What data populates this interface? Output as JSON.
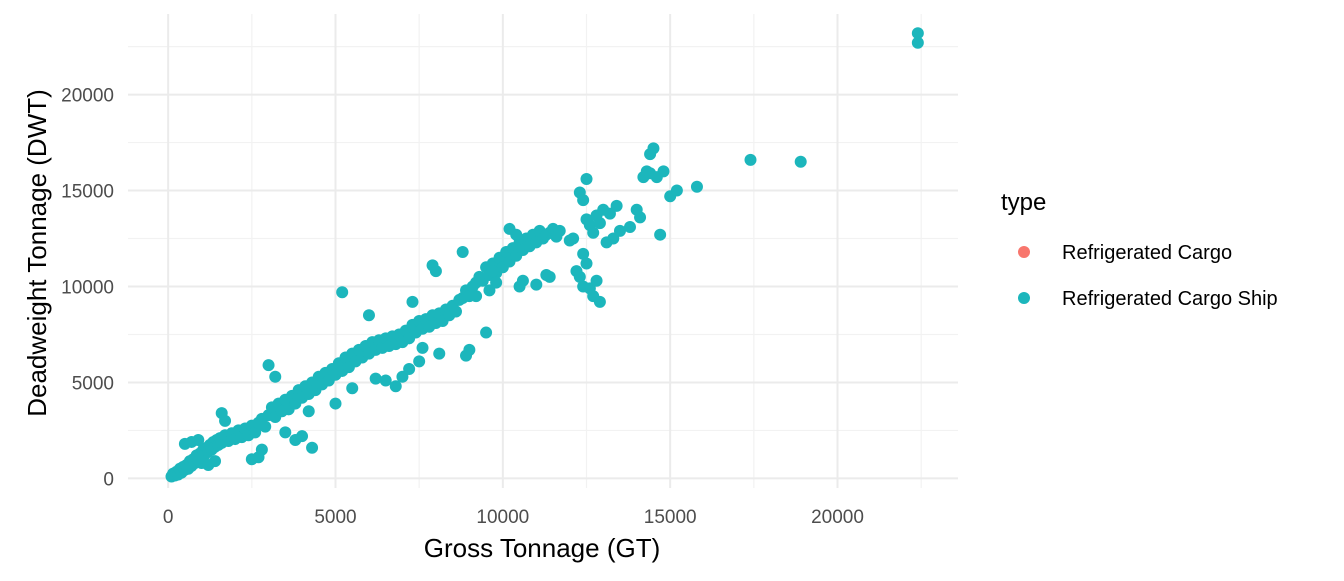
{
  "chart_data": {
    "type": "scatter",
    "xlabel": "Gross Tonnage (GT)",
    "ylabel": "Deadweight Tonnage (DWT)",
    "xlim": [
      -1200,
      23600
    ],
    "ylim": [
      -500,
      24200
    ],
    "x_ticks": [
      0,
      5000,
      10000,
      15000,
      20000
    ],
    "x_tick_labels": [
      "0",
      "5000",
      "10000",
      "15000",
      "20000"
    ],
    "y_ticks": [
      0,
      5000,
      10000,
      15000,
      20000
    ],
    "y_tick_labels": [
      "0",
      "5000",
      "10000",
      "15000",
      "20000"
    ],
    "grid": true,
    "legend": {
      "title": "type",
      "position": "right",
      "entries": [
        {
          "label": "Refrigerated Cargo",
          "color": "#F8766D"
        },
        {
          "label": "Refrigerated Cargo Ship",
          "color": "#00BFC4"
        }
      ]
    },
    "series": [
      {
        "name": "Refrigerated Cargo Ship",
        "color": "#1CB6BC",
        "points": [
          [
            100,
            100
          ],
          [
            150,
            250
          ],
          [
            200,
            150
          ],
          [
            250,
            350
          ],
          [
            300,
            200
          ],
          [
            350,
            500
          ],
          [
            400,
            300
          ],
          [
            450,
            600
          ],
          [
            500,
            450
          ],
          [
            550,
            700
          ],
          [
            600,
            500
          ],
          [
            650,
            900
          ],
          [
            700,
            650
          ],
          [
            750,
            1000
          ],
          [
            800,
            800
          ],
          [
            850,
            1200
          ],
          [
            900,
            950
          ],
          [
            950,
            1300
          ],
          [
            1000,
            1100
          ],
          [
            1050,
            1500
          ],
          [
            1100,
            1250
          ],
          [
            1150,
            1600
          ],
          [
            1200,
            1400
          ],
          [
            1250,
            1750
          ],
          [
            1300,
            1500
          ],
          [
            1350,
            1900
          ],
          [
            1400,
            1650
          ],
          [
            1450,
            2000
          ],
          [
            1500,
            1750
          ],
          [
            1550,
            2100
          ],
          [
            1600,
            1850
          ],
          [
            1700,
            2250
          ],
          [
            1800,
            1950
          ],
          [
            1900,
            2350
          ],
          [
            2000,
            2050
          ],
          [
            2100,
            2500
          ],
          [
            2200,
            2150
          ],
          [
            2300,
            2600
          ],
          [
            2400,
            2250
          ],
          [
            2500,
            2750
          ],
          [
            500,
            1800
          ],
          [
            700,
            1900
          ],
          [
            900,
            2000
          ],
          [
            1000,
            800
          ],
          [
            1200,
            700
          ],
          [
            1400,
            900
          ],
          [
            1600,
            3400
          ],
          [
            1700,
            3000
          ],
          [
            2600,
            2400
          ],
          [
            2700,
            2900
          ],
          [
            2800,
            3100
          ],
          [
            2900,
            2700
          ],
          [
            3000,
            3300
          ],
          [
            3100,
            3700
          ],
          [
            3200,
            3200
          ],
          [
            3300,
            3900
          ],
          [
            3400,
            3500
          ],
          [
            3500,
            4100
          ],
          [
            3600,
            3600
          ],
          [
            3700,
            4300
          ],
          [
            3800,
            3900
          ],
          [
            3900,
            4600
          ],
          [
            4000,
            4200
          ],
          [
            4100,
            4800
          ],
          [
            4200,
            4400
          ],
          [
            4300,
            5000
          ],
          [
            4400,
            4600
          ],
          [
            4500,
            5300
          ],
          [
            4600,
            4900
          ],
          [
            4700,
            5500
          ],
          [
            2500,
            1000
          ],
          [
            2700,
            1100
          ],
          [
            2800,
            1500
          ],
          [
            3000,
            5900
          ],
          [
            3200,
            5300
          ],
          [
            3500,
            2400
          ],
          [
            3800,
            2000
          ],
          [
            4000,
            2200
          ],
          [
            4200,
            3500
          ],
          [
            4300,
            1600
          ],
          [
            4800,
            5100
          ],
          [
            4900,
            5700
          ],
          [
            5000,
            5400
          ],
          [
            5100,
            6000
          ],
          [
            5200,
            5600
          ],
          [
            5300,
            6300
          ],
          [
            5400,
            5800
          ],
          [
            5500,
            6500
          ],
          [
            5600,
            6100
          ],
          [
            5700,
            6700
          ],
          [
            5800,
            6300
          ],
          [
            5900,
            6900
          ],
          [
            6000,
            6500
          ],
          [
            6100,
            7100
          ],
          [
            6200,
            6700
          ],
          [
            6300,
            7200
          ],
          [
            6400,
            6800
          ],
          [
            6500,
            7300
          ],
          [
            6600,
            6900
          ],
          [
            6700,
            7400
          ],
          [
            5200,
            9700
          ],
          [
            5000,
            3900
          ],
          [
            5500,
            4700
          ],
          [
            6000,
            8500
          ],
          [
            6200,
            5200
          ],
          [
            6500,
            5100
          ],
          [
            6800,
            4800
          ],
          [
            7000,
            5300
          ],
          [
            7200,
            5700
          ],
          [
            7500,
            6100
          ],
          [
            6800,
            7000
          ],
          [
            6900,
            7500
          ],
          [
            7000,
            7100
          ],
          [
            7100,
            7700
          ],
          [
            7200,
            7300
          ],
          [
            7300,
            8000
          ],
          [
            7400,
            7600
          ],
          [
            7500,
            8200
          ],
          [
            7600,
            7800
          ],
          [
            7700,
            8300
          ],
          [
            7800,
            7900
          ],
          [
            7900,
            8500
          ],
          [
            8000,
            8100
          ],
          [
            8100,
            8600
          ],
          [
            8200,
            8200
          ],
          [
            8300,
            8800
          ],
          [
            8400,
            8500
          ],
          [
            8500,
            9000
          ],
          [
            8600,
            8700
          ],
          [
            8700,
            9300
          ],
          [
            7300,
            9200
          ],
          [
            7600,
            6800
          ],
          [
            7900,
            11100
          ],
          [
            8000,
            10800
          ],
          [
            8100,
            6500
          ],
          [
            8800,
            11800
          ],
          [
            8900,
            6400
          ],
          [
            9000,
            6700
          ],
          [
            9200,
            9500
          ],
          [
            9500,
            7600
          ],
          [
            8800,
            9400
          ],
          [
            8900,
            9800
          ],
          [
            9000,
            9500
          ],
          [
            9100,
            10000
          ],
          [
            9200,
            10200
          ],
          [
            9300,
            10500
          ],
          [
            9400,
            10300
          ],
          [
            9500,
            11000
          ],
          [
            9600,
            10600
          ],
          [
            9700,
            11200
          ],
          [
            9800,
            10700
          ],
          [
            9900,
            11500
          ],
          [
            10000,
            11000
          ],
          [
            10100,
            11800
          ],
          [
            10200,
            11300
          ],
          [
            10300,
            12000
          ],
          [
            10400,
            11600
          ],
          [
            10500,
            12300
          ],
          [
            10600,
            11900
          ],
          [
            10700,
            12500
          ],
          [
            10800,
            12100
          ],
          [
            10900,
            12700
          ],
          [
            11000,
            12300
          ],
          [
            11100,
            12900
          ],
          [
            11200,
            12500
          ],
          [
            11300,
            12700
          ],
          [
            11400,
            12800
          ],
          [
            11500,
            13000
          ],
          [
            11600,
            12600
          ],
          [
            11700,
            12900
          ],
          [
            10200,
            13000
          ],
          [
            10400,
            12700
          ],
          [
            10500,
            10000
          ],
          [
            10600,
            10300
          ],
          [
            11000,
            10100
          ],
          [
            11300,
            10600
          ],
          [
            11400,
            10500
          ],
          [
            9800,
            10200
          ],
          [
            9600,
            9800
          ],
          [
            9700,
            10800
          ],
          [
            12000,
            12400
          ],
          [
            12100,
            12500
          ],
          [
            12300,
            14900
          ],
          [
            12400,
            14500
          ],
          [
            12500,
            13500
          ],
          [
            12600,
            13200
          ],
          [
            12700,
            12800
          ],
          [
            12800,
            13700
          ],
          [
            12900,
            13300
          ],
          [
            13000,
            14000
          ],
          [
            12200,
            10800
          ],
          [
            12300,
            10500
          ],
          [
            12400,
            10000
          ],
          [
            12600,
            9900
          ],
          [
            12700,
            9500
          ],
          [
            12800,
            10300
          ],
          [
            12900,
            9200
          ],
          [
            12500,
            15600
          ],
          [
            12400,
            11700
          ],
          [
            12500,
            11200
          ],
          [
            13100,
            12300
          ],
          [
            13200,
            13800
          ],
          [
            13300,
            12500
          ],
          [
            13400,
            14200
          ],
          [
            13500,
            12900
          ],
          [
            13800,
            13100
          ],
          [
            14000,
            14000
          ],
          [
            14100,
            13600
          ],
          [
            14200,
            15700
          ],
          [
            14300,
            16000
          ],
          [
            14400,
            16900
          ],
          [
            14500,
            17200
          ],
          [
            14400,
            15900
          ],
          [
            14600,
            15700
          ],
          [
            14700,
            12700
          ],
          [
            14800,
            16000
          ],
          [
            15000,
            14700
          ],
          [
            15200,
            15000
          ],
          [
            15800,
            15200
          ],
          [
            17400,
            16600
          ],
          [
            18900,
            16500
          ],
          [
            22400,
            23200
          ],
          [
            22400,
            22700
          ]
        ]
      }
    ]
  }
}
